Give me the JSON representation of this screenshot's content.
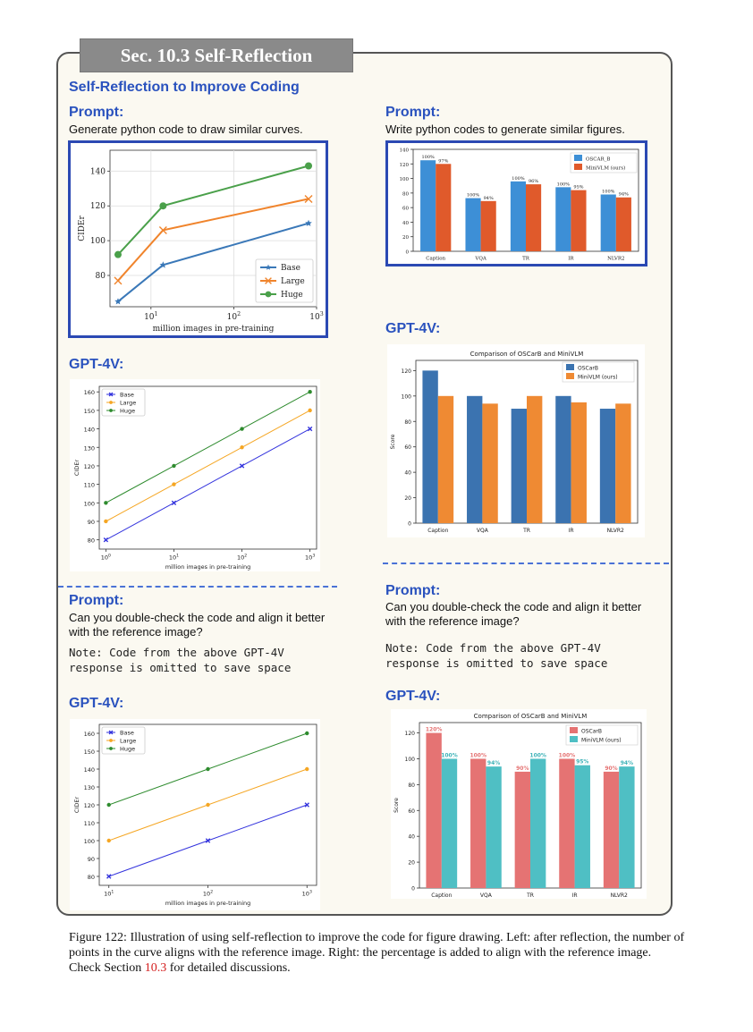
{
  "section_tab": "Sec. 10.3 Self-Reflection",
  "main_title": "Self-Reflection to Improve Coding",
  "left": {
    "prompt_label": "Prompt:",
    "prompt_text": "Generate python code to draw similar curves.",
    "gpt_label_1": "GPT-4V:",
    "prompt2_label": "Prompt:",
    "prompt2_text": "Can you double-check the code and align it better with the reference image?",
    "prompt2_note": "Note: Code from the above GPT-4V\nresponse is omitted to save space",
    "gpt_label_2": "GPT-4V:"
  },
  "right": {
    "prompt_label": "Prompt:",
    "prompt_text": "Write python codes to generate similar figures.",
    "gpt_label_1": "GPT-4V:",
    "prompt2_label": "Prompt:",
    "prompt2_text": "Can you double-check the code and align it better with the reference image?",
    "prompt2_note": "Note: Code from the above GPT-4V\nresponse is omitted to save space",
    "gpt_label_2": "GPT-4V:"
  },
  "caption": {
    "text": "Figure 122: Illustration of using self-reflection to improve the code for figure drawing. Left: after reflection, the number of points in the curve aligns with the reference image. Right: the percentage is added to align with the reference image. Check Section ",
    "ref": "10.3",
    "tail": " for detailed discussions."
  },
  "colors": {
    "blue_heading": "#2a52be",
    "frame": "#2b49b3",
    "osc": "#3b73b0",
    "mini": "#ef8a33",
    "osc2": "#e57373",
    "mini2": "#4fbfc4"
  },
  "chart_data": [
    {
      "id": "ref_line",
      "type": "line",
      "title": "",
      "xlabel": "million images in pre-training",
      "ylabel": "CIDEr",
      "xscale": "log",
      "xlim": [
        3.2,
        1000
      ],
      "ylim": [
        62,
        152
      ],
      "xtick_labels": [
        "10^1",
        "10^2",
        "10^3"
      ],
      "yticks": [
        80,
        100,
        120,
        140
      ],
      "grid": true,
      "legend_position": "lower-right",
      "series": [
        {
          "name": "Base",
          "x": [
            4,
            14,
            800
          ],
          "y": [
            65,
            86,
            110
          ],
          "color": "#3a78b8",
          "marker": "star"
        },
        {
          "name": "Large",
          "x": [
            4,
            14,
            800
          ],
          "y": [
            77,
            106,
            124
          ],
          "color": "#f0842c",
          "marker": "x"
        },
        {
          "name": "Huge",
          "x": [
            4,
            14,
            800
          ],
          "y": [
            92,
            120,
            143
          ],
          "color": "#4aa04a",
          "marker": "circle"
        }
      ]
    },
    {
      "id": "gpt_line_1",
      "type": "line",
      "title": "",
      "xlabel": "million images in pre-training",
      "ylabel": "CIDEr",
      "xscale": "log",
      "xlim": [
        0.8,
        1250
      ],
      "ylim": [
        75,
        163
      ],
      "xtick_labels": [
        "10^0",
        "10^1",
        "10^2",
        "10^3"
      ],
      "yticks": [
        80,
        90,
        100,
        110,
        120,
        130,
        140,
        150,
        160
      ],
      "grid": false,
      "legend_position": "top-left",
      "series": [
        {
          "name": "Base",
          "x": [
            1,
            10,
            100,
            1000
          ],
          "y": [
            80,
            100,
            120,
            140
          ],
          "color": "#3333dd",
          "marker": "x"
        },
        {
          "name": "Large",
          "x": [
            1,
            10,
            100,
            1000
          ],
          "y": [
            90,
            110,
            130,
            150
          ],
          "color": "#f5a623",
          "marker": "circle"
        },
        {
          "name": "Huge",
          "x": [
            1,
            10,
            100,
            1000
          ],
          "y": [
            100,
            120,
            140,
            160
          ],
          "color": "#2e8b2e",
          "marker": "circle"
        }
      ]
    },
    {
      "id": "gpt_line_2",
      "type": "line",
      "title": "",
      "xlabel": "million images in pre-training",
      "ylabel": "CIDEr",
      "xscale": "log",
      "xlim": [
        8,
        1250
      ],
      "ylim": [
        75,
        165
      ],
      "xtick_labels": [
        "10^1",
        "10^2",
        "10^3"
      ],
      "yticks": [
        80,
        90,
        100,
        110,
        120,
        130,
        140,
        150,
        160
      ],
      "grid": false,
      "legend_position": "top-left",
      "series": [
        {
          "name": "Base",
          "x": [
            10,
            100,
            1000
          ],
          "y": [
            80,
            100,
            120
          ],
          "color": "#3333dd",
          "marker": "x"
        },
        {
          "name": "Large",
          "x": [
            10,
            100,
            1000
          ],
          "y": [
            100,
            120,
            140
          ],
          "color": "#f5a623",
          "marker": "circle"
        },
        {
          "name": "Huge",
          "x": [
            10,
            100,
            1000
          ],
          "y": [
            120,
            140,
            160
          ],
          "color": "#2e8b2e",
          "marker": "circle"
        }
      ]
    },
    {
      "id": "ref_bar",
      "type": "bar",
      "title": "",
      "categories": [
        "Caption",
        "VQA",
        "TR",
        "IR",
        "NLVR2"
      ],
      "ylim": [
        0,
        140
      ],
      "yticks": [
        0,
        20,
        40,
        60,
        80,
        100,
        120,
        140
      ],
      "legend_position": "top-right",
      "series": [
        {
          "name": "OSCAR_B",
          "values": [
            125,
            73,
            96,
            88,
            78
          ],
          "labels": [
            "100%",
            "100%",
            "100%",
            "100%",
            "100%"
          ],
          "color": "#3d8fd6"
        },
        {
          "name": "MiniVLM (ours)",
          "values": [
            120,
            69,
            92,
            84,
            74
          ],
          "labels": [
            "97%",
            "94%",
            "96%",
            "95%",
            "94%"
          ],
          "color": "#e05a2b"
        }
      ]
    },
    {
      "id": "gpt_bar_1",
      "type": "bar",
      "title": "Comparison of OSCarB and MiniVLM",
      "ylabel": "Score",
      "categories": [
        "Caption",
        "VQA",
        "TR",
        "IR",
        "NLVR2"
      ],
      "ylim": [
        0,
        128
      ],
      "yticks": [
        0,
        20,
        40,
        60,
        80,
        100,
        120
      ],
      "legend_position": "top-right",
      "series": [
        {
          "name": "OSCarB",
          "values": [
            120,
            100,
            90,
            100,
            90
          ],
          "color": "#3b73b0"
        },
        {
          "name": "MiniVLM (ours)",
          "values": [
            100,
            94,
            100,
            95,
            94
          ],
          "color": "#ef8a33"
        }
      ]
    },
    {
      "id": "gpt_bar_2",
      "type": "bar",
      "title": "Comparison of OSCarB and MiniVLM",
      "ylabel": "Score",
      "categories": [
        "Caption",
        "VQA",
        "TR",
        "IR",
        "NLVR2"
      ],
      "ylim": [
        0,
        128
      ],
      "yticks": [
        0,
        20,
        40,
        60,
        80,
        100,
        120
      ],
      "legend_position": "top-right",
      "series": [
        {
          "name": "OSCarB",
          "values": [
            120,
            100,
            90,
            100,
            90
          ],
          "labels": [
            "120%",
            "100%",
            "90%",
            "100%",
            "90%"
          ],
          "color": "#e57373"
        },
        {
          "name": "MiniVLM (ours)",
          "values": [
            100,
            94,
            100,
            95,
            94
          ],
          "labels": [
            "100%",
            "94%",
            "100%",
            "95%",
            "94%"
          ],
          "color": "#4fbfc4"
        }
      ]
    }
  ]
}
